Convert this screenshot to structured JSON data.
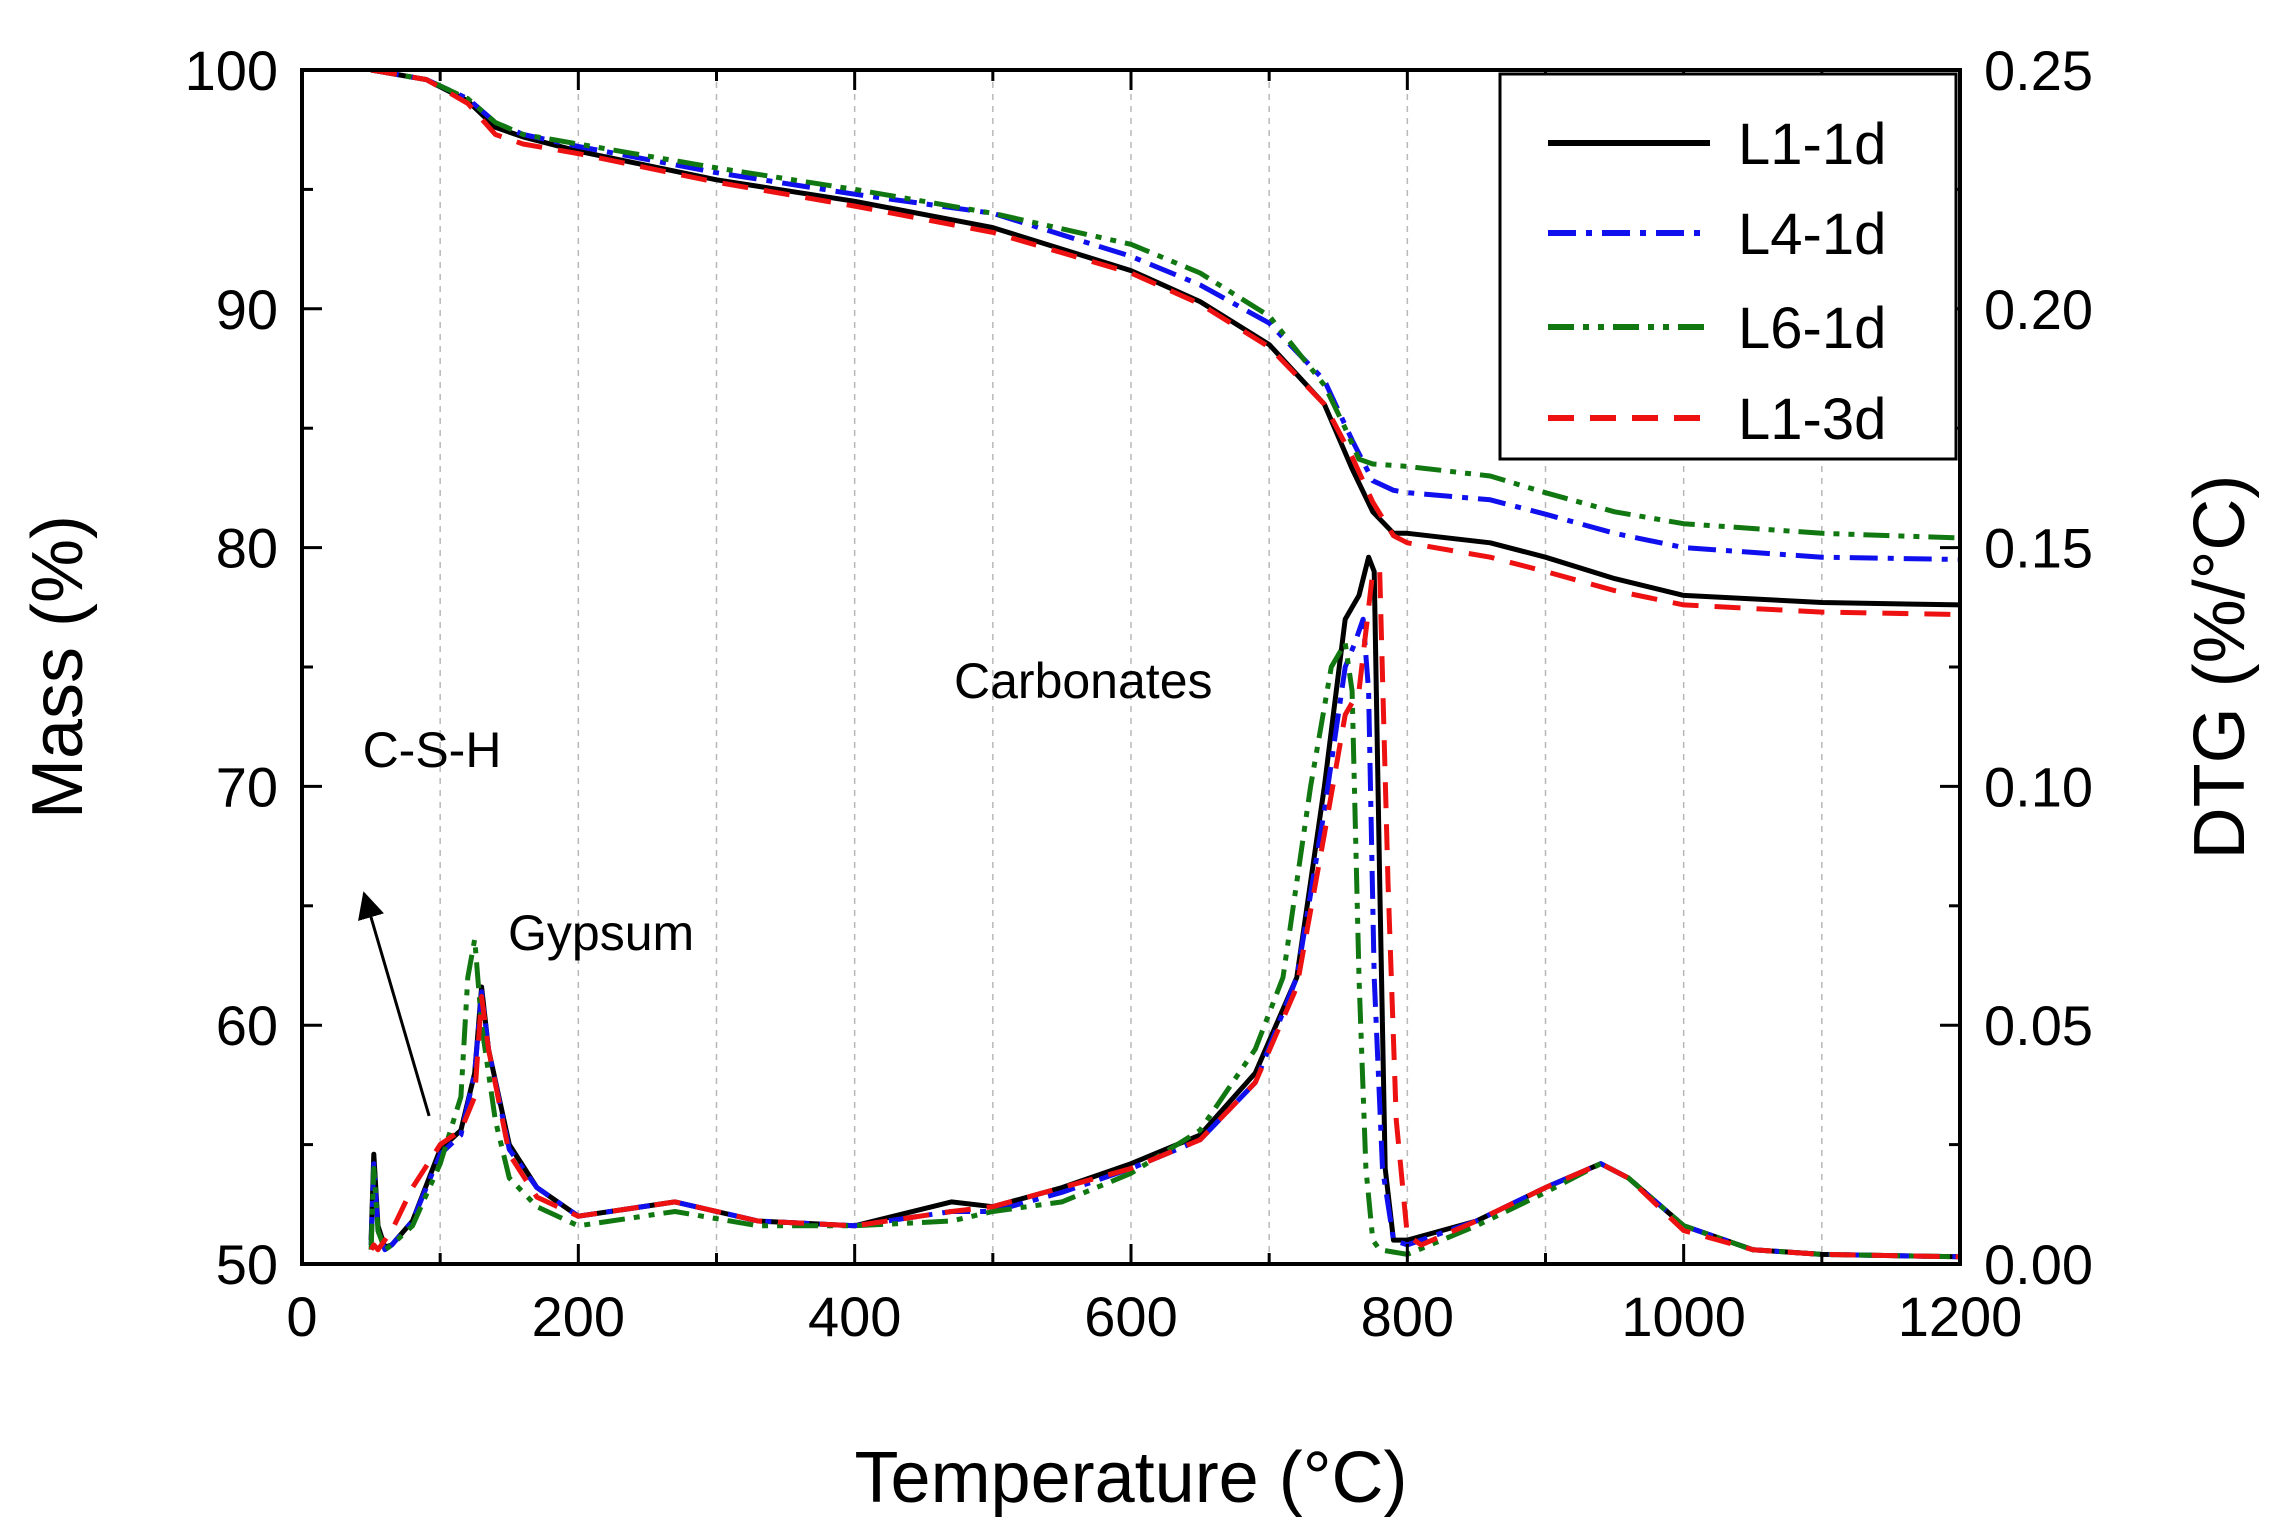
{
  "chart_data": {
    "type": "line",
    "title": "",
    "xlabel": "Temperature (°C)",
    "ylabel_left": "Mass (%)",
    "ylabel_right": "DTG (%/°C)",
    "xlim": [
      0,
      1200
    ],
    "ylim_left": [
      50,
      100
    ],
    "ylim_right": [
      0,
      0.25
    ],
    "x_ticks": [
      "0",
      "200",
      "400",
      "600",
      "800",
      "1000",
      "1200"
    ],
    "y_left_ticks": [
      "50",
      "60",
      "70",
      "80",
      "90",
      "100"
    ],
    "y_right_ticks": [
      "0.00",
      "0.05",
      "0.10",
      "0.15",
      "0.20",
      "0.25"
    ],
    "vertical_grid_every": 100,
    "legend_position": "top-right",
    "annotations": [
      {
        "text": "C-S-H",
        "x": 100,
        "y_left": 71.5
      },
      {
        "text": "Gypsum",
        "x": 205,
        "y_left": 61.5
      },
      {
        "text": "Carbonates",
        "x": 595,
        "y_left": 74
      }
    ],
    "arrow": {
      "from": [
        92,
        56.2
      ],
      "to": [
        45,
        65.5
      ]
    },
    "series": [
      {
        "name": "L1-1d",
        "color": "#000000",
        "dash": "solid",
        "mass_x": [
          50,
          90,
          120,
          140,
          160,
          200,
          300,
          400,
          500,
          600,
          650,
          700,
          740,
          760,
          775,
          790,
          800,
          860,
          900,
          950,
          1000,
          1100,
          1200
        ],
        "mass_y": [
          100,
          99.6,
          98.7,
          97.6,
          97.2,
          96.6,
          95.4,
          94.5,
          93.4,
          91.6,
          90.3,
          88.5,
          86.0,
          83.3,
          81.5,
          80.6,
          80.6,
          80.2,
          79.6,
          78.7,
          78.0,
          77.7,
          77.6
        ],
        "dtg_x": [
          50,
          52,
          55,
          60,
          65,
          80,
          100,
          115,
          125,
          130,
          135,
          150,
          170,
          200,
          270,
          330,
          400,
          470,
          500,
          550,
          600,
          650,
          690,
          720,
          740,
          755,
          765,
          772,
          776,
          780,
          784,
          790,
          800,
          850,
          900,
          940,
          960,
          1000,
          1050,
          1100,
          1200
        ],
        "dtg_y": [
          0.005,
          0.023,
          0.008,
          0.0035,
          0.004,
          0.009,
          0.024,
          0.028,
          0.04,
          0.058,
          0.045,
          0.025,
          0.016,
          0.01,
          0.013,
          0.009,
          0.008,
          0.013,
          0.012,
          0.016,
          0.021,
          0.027,
          0.04,
          0.06,
          0.1,
          0.135,
          0.14,
          0.148,
          0.145,
          0.08,
          0.02,
          0.005,
          0.005,
          0.009,
          0.016,
          0.021,
          0.018,
          0.008,
          0.003,
          0.002,
          0.0015
        ]
      },
      {
        "name": "L4-1d",
        "color": "#1010ee",
        "dash": "dash-dot",
        "mass_x": [
          50,
          90,
          120,
          140,
          160,
          200,
          300,
          400,
          500,
          600,
          650,
          700,
          740,
          760,
          775,
          790,
          800,
          860,
          900,
          950,
          1000,
          1100,
          1200
        ],
        "mass_y": [
          100,
          99.6,
          98.8,
          97.8,
          97.3,
          96.8,
          95.7,
          94.8,
          94.0,
          92.2,
          91.0,
          89.4,
          87.0,
          84.5,
          82.8,
          82.4,
          82.3,
          82.0,
          81.4,
          80.6,
          80.0,
          79.6,
          79.5
        ],
        "dtg_x": [
          50,
          52,
          55,
          60,
          65,
          80,
          100,
          115,
          125,
          130,
          135,
          150,
          170,
          200,
          270,
          330,
          400,
          470,
          500,
          550,
          600,
          650,
          690,
          720,
          740,
          755,
          762,
          768,
          772,
          776,
          782,
          790,
          800,
          850,
          900,
          940,
          960,
          1000,
          1050,
          1100,
          1200
        ],
        "dtg_y": [
          0.004,
          0.021,
          0.007,
          0.003,
          0.004,
          0.009,
          0.023,
          0.027,
          0.04,
          0.057,
          0.045,
          0.024,
          0.016,
          0.01,
          0.013,
          0.009,
          0.008,
          0.011,
          0.011,
          0.015,
          0.02,
          0.026,
          0.038,
          0.06,
          0.095,
          0.125,
          0.13,
          0.135,
          0.12,
          0.06,
          0.02,
          0.005,
          0.004,
          0.009,
          0.016,
          0.021,
          0.018,
          0.008,
          0.003,
          0.002,
          0.0015
        ]
      },
      {
        "name": "L6-1d",
        "color": "#117711",
        "dash": "dash-dot-dot",
        "mass_x": [
          50,
          90,
          120,
          140,
          160,
          200,
          300,
          400,
          500,
          600,
          650,
          700,
          740,
          755,
          765,
          775,
          800,
          860,
          900,
          950,
          1000,
          1100,
          1200
        ],
        "mass_y": [
          100,
          99.6,
          98.8,
          97.8,
          97.3,
          96.9,
          95.9,
          95.0,
          94.0,
          92.7,
          91.5,
          89.7,
          86.8,
          85.0,
          83.7,
          83.5,
          83.4,
          83.0,
          82.3,
          81.5,
          81.0,
          80.6,
          80.4
        ],
        "dtg_x": [
          50,
          52,
          55,
          60,
          65,
          80,
          100,
          115,
          120,
          125,
          130,
          140,
          150,
          170,
          200,
          270,
          330,
          400,
          470,
          500,
          550,
          600,
          650,
          690,
          710,
          730,
          745,
          755,
          760,
          765,
          770,
          775,
          780,
          800,
          850,
          900,
          940,
          960,
          1000,
          1050,
          1100,
          1200
        ],
        "dtg_y": [
          0.003,
          0.02,
          0.007,
          0.003,
          0.004,
          0.008,
          0.021,
          0.035,
          0.06,
          0.068,
          0.05,
          0.03,
          0.018,
          0.012,
          0.008,
          0.011,
          0.008,
          0.008,
          0.009,
          0.011,
          0.013,
          0.019,
          0.028,
          0.045,
          0.06,
          0.1,
          0.125,
          0.13,
          0.12,
          0.06,
          0.02,
          0.005,
          0.003,
          0.002,
          0.008,
          0.015,
          0.021,
          0.018,
          0.008,
          0.003,
          0.002,
          0.0015
        ]
      },
      {
        "name": "L1-3d",
        "color": "#ee1111",
        "dash": "dashed",
        "mass_x": [
          50,
          90,
          120,
          140,
          160,
          200,
          300,
          400,
          500,
          600,
          650,
          700,
          740,
          760,
          775,
          790,
          800,
          860,
          900,
          950,
          1000,
          1100,
          1200
        ],
        "mass_y": [
          100,
          99.6,
          98.6,
          97.3,
          96.9,
          96.5,
          95.3,
          94.3,
          93.2,
          91.5,
          90.2,
          88.4,
          86.0,
          83.8,
          81.9,
          80.5,
          80.2,
          79.6,
          79.0,
          78.2,
          77.6,
          77.3,
          77.2
        ],
        "dtg_x": [
          50,
          52,
          55,
          60,
          65,
          80,
          100,
          115,
          125,
          130,
          135,
          150,
          170,
          200,
          270,
          330,
          400,
          470,
          500,
          550,
          600,
          650,
          690,
          720,
          740,
          755,
          765,
          775,
          780,
          786,
          792,
          800,
          810,
          850,
          900,
          940,
          960,
          1000,
          1050,
          1100,
          1200
        ],
        "dtg_y": [
          0.003,
          0.004,
          0.003,
          0.005,
          0.007,
          0.016,
          0.025,
          0.028,
          0.035,
          0.056,
          0.045,
          0.023,
          0.014,
          0.01,
          0.013,
          0.009,
          0.008,
          0.011,
          0.012,
          0.016,
          0.02,
          0.026,
          0.038,
          0.058,
          0.09,
          0.115,
          0.12,
          0.145,
          0.145,
          0.08,
          0.03,
          0.006,
          0.004,
          0.009,
          0.016,
          0.021,
          0.018,
          0.007,
          0.003,
          0.002,
          0.0015
        ]
      }
    ]
  }
}
